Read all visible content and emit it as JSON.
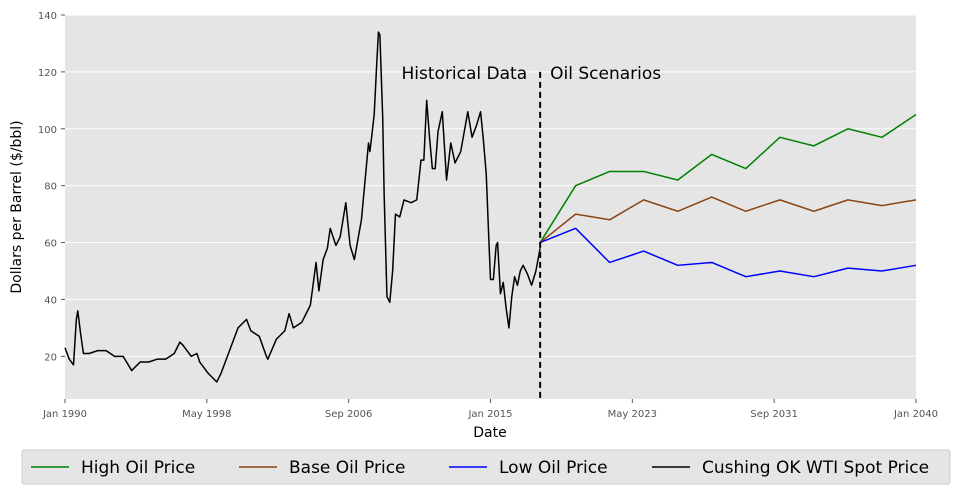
{
  "chart_data": {
    "type": "line",
    "xlabel": "Date",
    "ylabel": "Dollars per Barrel ($/bbl)",
    "xlim": [
      "1990-01",
      "2040-01"
    ],
    "ylim": [
      5,
      140
    ],
    "grid": true,
    "legend_position": "bottom",
    "x_ticks": [
      {
        "date": "1990-01",
        "label": "Jan 1990"
      },
      {
        "date": "1998-05",
        "label": "May 1998"
      },
      {
        "date": "2006-09",
        "label": "Sep 2006"
      },
      {
        "date": "2015-01",
        "label": "Jan 2015"
      },
      {
        "date": "2023-05",
        "label": "May 2023"
      },
      {
        "date": "2031-09",
        "label": "Sep 2031"
      },
      {
        "date": "2040-01",
        "label": "Jan 2040"
      }
    ],
    "y_ticks": [
      20,
      40,
      60,
      80,
      100,
      120,
      140
    ],
    "annotations": {
      "divider_date": "2017-12",
      "left_label": "Historical Data",
      "right_label": "Oil Scenarios"
    },
    "series": [
      {
        "name": "High Oil Price",
        "color": "#008000",
        "points": [
          [
            "2017-12",
            60
          ],
          [
            "2020-01",
            80
          ],
          [
            "2022-01",
            85
          ],
          [
            "2024-01",
            85
          ],
          [
            "2026-01",
            82
          ],
          [
            "2028-01",
            91
          ],
          [
            "2030-01",
            86
          ],
          [
            "2032-01",
            97
          ],
          [
            "2034-01",
            94
          ],
          [
            "2036-01",
            100
          ],
          [
            "2038-01",
            97
          ],
          [
            "2040-01",
            105
          ]
        ]
      },
      {
        "name": "Base Oil Price",
        "color": "#8B4513",
        "points": [
          [
            "2017-12",
            60
          ],
          [
            "2020-01",
            70
          ],
          [
            "2022-01",
            68
          ],
          [
            "2024-01",
            75
          ],
          [
            "2026-01",
            71
          ],
          [
            "2028-01",
            76
          ],
          [
            "2030-01",
            71
          ],
          [
            "2032-01",
            75
          ],
          [
            "2034-01",
            71
          ],
          [
            "2036-01",
            75
          ],
          [
            "2038-01",
            73
          ],
          [
            "2040-01",
            75
          ]
        ]
      },
      {
        "name": "Low Oil Price",
        "color": "#0000FF",
        "points": [
          [
            "2017-12",
            60
          ],
          [
            "2020-01",
            65
          ],
          [
            "2022-01",
            53
          ],
          [
            "2024-01",
            57
          ],
          [
            "2026-01",
            52
          ],
          [
            "2028-01",
            53
          ],
          [
            "2030-01",
            48
          ],
          [
            "2032-01",
            50
          ],
          [
            "2034-01",
            48
          ],
          [
            "2036-01",
            51
          ],
          [
            "2038-01",
            50
          ],
          [
            "2040-01",
            52
          ]
        ]
      },
      {
        "name": "Cushing OK WTI Spot Price",
        "color": "#000000",
        "points": [
          [
            "1990-01",
            23
          ],
          [
            "1990-04",
            19
          ],
          [
            "1990-07",
            17
          ],
          [
            "1990-09",
            33
          ],
          [
            "1990-10",
            36
          ],
          [
            "1990-12",
            28
          ],
          [
            "1991-02",
            21
          ],
          [
            "1991-06",
            21
          ],
          [
            "1991-12",
            22
          ],
          [
            "1992-06",
            22
          ],
          [
            "1992-12",
            20
          ],
          [
            "1993-06",
            20
          ],
          [
            "1993-12",
            15
          ],
          [
            "1994-06",
            18
          ],
          [
            "1994-12",
            18
          ],
          [
            "1995-06",
            19
          ],
          [
            "1995-12",
            19
          ],
          [
            "1996-06",
            21
          ],
          [
            "1996-10",
            25
          ],
          [
            "1996-12",
            24
          ],
          [
            "1997-06",
            20
          ],
          [
            "1997-10",
            21
          ],
          [
            "1997-12",
            18
          ],
          [
            "1998-06",
            14
          ],
          [
            "1998-12",
            11
          ],
          [
            "1999-03",
            14
          ],
          [
            "1999-06",
            18
          ],
          [
            "1999-12",
            26
          ],
          [
            "2000-03",
            30
          ],
          [
            "2000-09",
            33
          ],
          [
            "2000-12",
            29
          ],
          [
            "2001-06",
            27
          ],
          [
            "2001-11",
            20
          ],
          [
            "2001-12",
            19
          ],
          [
            "2002-06",
            26
          ],
          [
            "2002-12",
            29
          ],
          [
            "2003-03",
            35
          ],
          [
            "2003-06",
            30
          ],
          [
            "2003-12",
            32
          ],
          [
            "2004-06",
            38
          ],
          [
            "2004-10",
            53
          ],
          [
            "2004-12",
            43
          ],
          [
            "2005-03",
            54
          ],
          [
            "2005-06",
            58
          ],
          [
            "2005-08",
            65
          ],
          [
            "2005-12",
            59
          ],
          [
            "2006-03",
            62
          ],
          [
            "2006-07",
            74
          ],
          [
            "2006-10",
            59
          ],
          [
            "2007-01",
            54
          ],
          [
            "2007-06",
            68
          ],
          [
            "2007-11",
            95
          ],
          [
            "2007-12",
            92
          ],
          [
            "2008-03",
            105
          ],
          [
            "2008-05",
            125
          ],
          [
            "2008-06",
            134
          ],
          [
            "2008-07",
            133
          ],
          [
            "2008-09",
            104
          ],
          [
            "2008-10",
            77
          ],
          [
            "2008-12",
            41
          ],
          [
            "2009-02",
            39
          ],
          [
            "2009-04",
            50
          ],
          [
            "2009-06",
            70
          ],
          [
            "2009-09",
            69
          ],
          [
            "2009-12",
            75
          ],
          [
            "2010-05",
            74
          ],
          [
            "2010-09",
            75
          ],
          [
            "2010-12",
            89
          ],
          [
            "2011-02",
            89
          ],
          [
            "2011-04",
            110
          ],
          [
            "2011-06",
            97
          ],
          [
            "2011-08",
            86
          ],
          [
            "2011-10",
            86
          ],
          [
            "2011-12",
            99
          ],
          [
            "2012-03",
            106
          ],
          [
            "2012-06",
            82
          ],
          [
            "2012-09",
            95
          ],
          [
            "2012-12",
            88
          ],
          [
            "2013-04",
            92
          ],
          [
            "2013-09",
            106
          ],
          [
            "2013-12",
            97
          ],
          [
            "2014-03",
            101
          ],
          [
            "2014-06",
            106
          ],
          [
            "2014-08",
            96
          ],
          [
            "2014-10",
            84
          ],
          [
            "2014-12",
            59
          ],
          [
            "2015-01",
            47
          ],
          [
            "2015-03",
            47
          ],
          [
            "2015-05",
            59
          ],
          [
            "2015-06",
            60
          ],
          [
            "2015-08",
            42
          ],
          [
            "2015-10",
            46
          ],
          [
            "2015-12",
            37
          ],
          [
            "2016-02",
            30
          ],
          [
            "2016-04",
            41
          ],
          [
            "2016-06",
            48
          ],
          [
            "2016-08",
            45
          ],
          [
            "2016-10",
            50
          ],
          [
            "2016-12",
            52
          ],
          [
            "2017-03",
            49
          ],
          [
            "2017-06",
            45
          ],
          [
            "2017-09",
            50
          ],
          [
            "2017-12",
            58
          ]
        ]
      }
    ]
  }
}
